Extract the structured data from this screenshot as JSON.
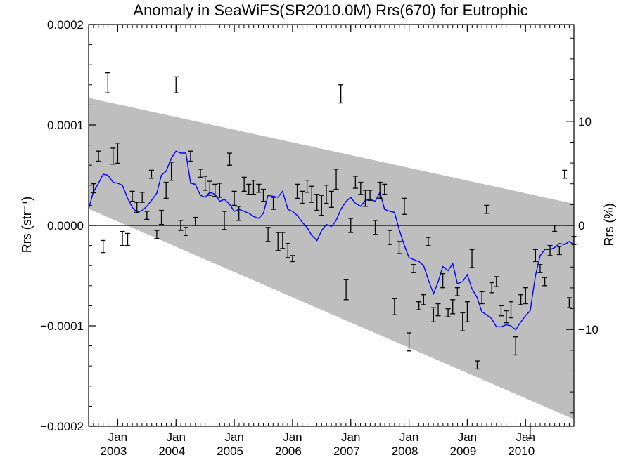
{
  "chart_data": {
    "type": "scatter",
    "title": "Anomaly in SeaWiFS(SR2010.0M) Rrs(670) for Eutrophic",
    "ylabel_left": "Rrs (str⁻¹)",
    "ylabel_right": "Rrs (%)",
    "xlim": [
      2002.5,
      2010.83
    ],
    "ylim": [
      -0.0002,
      0.0002
    ],
    "ylim_right_percent": [
      -19.3,
      19.3
    ],
    "y_ticks": [
      -0.0002,
      -0.0001,
      0.0,
      0.0001,
      0.0002
    ],
    "y_tick_labels": [
      "−0.0002",
      "−0.0001",
      "0.0000",
      "0.0001",
      "0.0002"
    ],
    "y_ticks_right": [
      -10,
      0,
      10
    ],
    "y_tick_labels_right": [
      "−10",
      "0",
      "10"
    ],
    "x_ticks": [
      2003,
      2004,
      2005,
      2006,
      2007,
      2008,
      2009,
      2010
    ],
    "x_tick_month_label": "Jan",
    "x_tick_year_labels": [
      "2003",
      "2004",
      "2005",
      "2006",
      "2007",
      "2008",
      "2009",
      "2010"
    ],
    "zero_line": 0,
    "band": {
      "color": "#bebebe",
      "upper": [
        [
          2002.5,
          0.000127
        ],
        [
          2010.83,
          2.15e-05
        ]
      ],
      "lower": [
        [
          2002.5,
          1.65e-05
        ],
        [
          2010.83,
          -0.000193
        ]
      ]
    },
    "series": [
      {
        "style": "line",
        "color": "#0000ff",
        "x": [
          2002.5,
          2002.58,
          2002.67,
          2002.75,
          2002.83,
          2002.92,
          2003.0,
          2003.08,
          2003.17,
          2003.25,
          2003.33,
          2003.42,
          2003.5,
          2003.58,
          2003.67,
          2003.75,
          2003.83,
          2003.92,
          2004.0,
          2004.08,
          2004.17,
          2004.25,
          2004.33,
          2004.42,
          2004.5,
          2004.58,
          2004.67,
          2004.75,
          2004.83,
          2004.92,
          2005.0,
          2005.08,
          2005.17,
          2005.25,
          2005.33,
          2005.42,
          2005.5,
          2005.58,
          2005.67,
          2005.75,
          2005.83,
          2005.92,
          2006.0,
          2006.08,
          2006.17,
          2006.25,
          2006.33,
          2006.42,
          2006.5,
          2006.58,
          2006.67,
          2006.75,
          2006.83,
          2006.92,
          2007.0,
          2007.08,
          2007.17,
          2007.25,
          2007.33,
          2007.42,
          2007.5,
          2007.58,
          2007.67,
          2007.75,
          2007.83,
          2007.92,
          2008.0,
          2008.08,
          2008.17,
          2008.25,
          2008.33,
          2008.42,
          2008.5,
          2008.58,
          2008.67,
          2008.75,
          2008.83,
          2008.92,
          2009.0,
          2009.08,
          2009.17,
          2009.25,
          2009.33,
          2009.42,
          2009.5,
          2009.58,
          2009.67,
          2009.75,
          2009.83,
          2009.92,
          2010.0,
          2010.08,
          2010.17,
          2010.25,
          2010.33,
          2010.42,
          2010.5,
          2010.58,
          2010.67,
          2010.75,
          2010.83
        ],
        "y": [
          1.65e-05,
          3.3e-05,
          4.2e-05,
          5.1e-05,
          5e-05,
          4.3e-05,
          4.2e-05,
          4e-05,
          2.7e-05,
          1.8e-05,
          1.3e-05,
          1.5e-05,
          1.9e-05,
          2.5e-05,
          3.2e-05,
          5e-05,
          5.4e-05,
          6.7e-05,
          7.4e-05,
          7.2e-05,
          7.2e-05,
          4.2e-05,
          4.1e-05,
          3e-05,
          2.8e-05,
          3.3e-05,
          3.1e-05,
          2.4e-05,
          2.6e-05,
          2.1e-05,
          1.4e-05,
          1.6e-05,
          1.4e-05,
          1.2e-05,
          9e-06,
          7e-06,
          1.2e-05,
          3e-05,
          2.9e-05,
          2.8e-05,
          3.4e-05,
          1.6e-05,
          1.4e-05,
          1e-05,
          3e-06,
          -2e-06,
          -1e-05,
          -1.5e-05,
          -5e-06,
          1e-06,
          -1e-06,
          5e-06,
          1.6e-05,
          2.4e-05,
          2.8e-05,
          2.2e-05,
          1.9e-05,
          2.5e-05,
          2.6e-05,
          2.4e-05,
          3.3e-05,
          1.6e-05,
          1.4e-05,
          1.3e-05,
          -4e-06,
          -2e-05,
          -3.2e-05,
          -3.4e-05,
          -3.6e-05,
          -4e-05,
          -5.4e-05,
          -6.8e-05,
          -5.6e-05,
          -4.1e-05,
          -4.5e-05,
          -3.8e-05,
          -5.8e-05,
          -5.6e-05,
          -4.9e-05,
          -6.3e-05,
          -7.2e-05,
          -8.6e-05,
          -8.9e-05,
          -9.3e-05,
          -0.000101,
          -0.000101,
          -9.9e-05,
          -0.0001,
          -0.000104,
          -9.6e-05,
          -9e-05,
          -8.5e-05,
          -5e-05,
          -3e-05,
          -2.4e-05,
          -2.4e-05,
          -2.2e-05,
          -1.8e-05,
          -1.9e-05,
          -1.6e-05,
          -1.9e-05
        ]
      },
      {
        "style": "errorbar",
        "color": "#000000",
        "x": [
          2002.58,
          2002.67,
          2002.75,
          2002.83,
          2002.92,
          2003.0,
          2003.08,
          2003.17,
          2003.25,
          2003.33,
          2003.42,
          2003.5,
          2003.58,
          2003.67,
          2003.75,
          2003.83,
          2003.92,
          2004.0,
          2004.08,
          2004.17,
          2004.25,
          2004.33,
          2004.42,
          2004.5,
          2004.58,
          2004.67,
          2004.75,
          2004.83,
          2004.92,
          2005.0,
          2005.08,
          2005.17,
          2005.25,
          2005.33,
          2005.42,
          2005.5,
          2005.58,
          2005.67,
          2005.75,
          2005.83,
          2005.92,
          2006.0,
          2006.08,
          2006.17,
          2006.25,
          2006.33,
          2006.42,
          2006.5,
          2006.58,
          2006.67,
          2006.75,
          2006.83,
          2006.92,
          2007.0,
          2007.08,
          2007.17,
          2007.25,
          2007.33,
          2007.42,
          2007.5,
          2007.58,
          2007.67,
          2007.75,
          2007.83,
          2007.92,
          2008.0,
          2008.08,
          2008.17,
          2008.25,
          2008.33,
          2008.42,
          2008.5,
          2008.58,
          2008.67,
          2008.75,
          2008.83,
          2008.92,
          2009.0,
          2009.08,
          2009.17,
          2009.25,
          2009.33,
          2009.42,
          2009.5,
          2009.58,
          2009.67,
          2009.75,
          2009.83,
          2009.92,
          2010.0,
          2010.08,
          2010.17,
          2010.25,
          2010.33,
          2010.42,
          2010.5,
          2010.58,
          2010.67,
          2010.75,
          2010.83
        ],
        "y": [
          3.7e-05,
          6.9e-05,
          -2.1e-05,
          0.000142,
          6.9e-05,
          7.2e-05,
          -1.3e-05,
          -1.4e-05,
          2.9e-05,
          1.8e-05,
          2.8e-05,
          1e-05,
          5.1e-05,
          -9e-06,
          8e-06,
          3.5e-05,
          5.4e-05,
          0.00014,
          0.0,
          -6e-06,
          6.9e-05,
          4e-06,
          5.2e-05,
          4.2e-05,
          3.7e-05,
          3.5e-05,
          3.5e-05,
          5e-06,
          6.6e-05,
          2.7e-05,
          1.2e-05,
          4.1e-05,
          3.6e-05,
          3.8e-05,
          3.7e-05,
          3e-05,
          -9e-06,
          2.2e-05,
          -1.6e-05,
          -1.5e-05,
          -2.5e-05,
          -3.3e-05,
          3.4e-05,
          2.8e-05,
          3.9e-05,
          3.1e-05,
          2.3e-05,
          2e-05,
          3.1e-05,
          2.6e-05,
          4.6e-05,
          0.000131,
          -6.4e-05,
          0.0,
          4.3e-05,
          3.7e-05,
          2.7e-05,
          3e-05,
          -2e-06,
          3.5e-05,
          3.6e-05,
          -1.2e-05,
          -8.1e-05,
          -2.2e-05,
          1.9e-05,
          -0.000116,
          -4.3e-05,
          -8e-05,
          -7.4e-05,
          -1.6e-05,
          -8.9e-05,
          -8.4e-05,
          -5.5e-05,
          -8.7e-05,
          -8.1e-05,
          -6.6e-05,
          -9.6e-05,
          -8.6e-05,
          -3.3e-05,
          -0.000139,
          -7.2e-05,
          1.6e-05,
          -6.2e-05,
          -5.6e-05,
          -8.5e-05,
          -9.1e-05,
          -8.4e-05,
          -0.00012,
          -7.4e-05,
          -7e-05,
          -0.000206,
          -3e-05,
          -4.3e-05,
          -5.6e-05,
          -2.5e-05,
          -3e-06,
          -2.5e-05,
          5.1e-05,
          -7.7e-05,
          -1.5e-05
        ],
        "err": [
          4.5e-06,
          5e-06,
          6e-06,
          1e-05,
          8e-06,
          1e-05,
          7e-06,
          6e-06,
          5e-06,
          5e-06,
          5e-06,
          4e-06,
          4e-06,
          4e-06,
          7e-06,
          8e-06,
          9e-06,
          8e-06,
          5e-06,
          4e-06,
          5e-06,
          4e-06,
          4e-06,
          7e-06,
          7e-06,
          6e-06,
          7e-06,
          9e-06,
          6e-06,
          7e-06,
          7e-06,
          7e-06,
          5e-06,
          7e-06,
          4e-06,
          6e-06,
          7e-06,
          6e-06,
          9e-06,
          8e-06,
          7e-06,
          3e-06,
          7e-06,
          6e-06,
          6e-06,
          8e-06,
          8e-06,
          1e-05,
          9e-06,
          8e-06,
          1e-05,
          9e-06,
          1e-05,
          7e-06,
          6e-06,
          6e-06,
          8e-06,
          5e-06,
          7e-06,
          8e-06,
          5e-06,
          7e-06,
          8e-06,
          6e-06,
          8e-06,
          9e-06,
          4e-06,
          4e-06,
          5e-06,
          4e-06,
          7e-06,
          6e-06,
          7e-06,
          4e-06,
          7e-06,
          4e-06,
          9e-06,
          1e-05,
          9e-06,
          4e-06,
          6e-06,
          4e-06,
          5e-06,
          5e-06,
          5e-06,
          6e-06,
          8e-06,
          9e-06,
          5e-06,
          8e-06,
          6e-06,
          6e-06,
          4e-06,
          4e-06,
          5e-06,
          3e-06,
          4e-06,
          4e-06,
          5e-06,
          4e-06
        ]
      }
    ]
  }
}
